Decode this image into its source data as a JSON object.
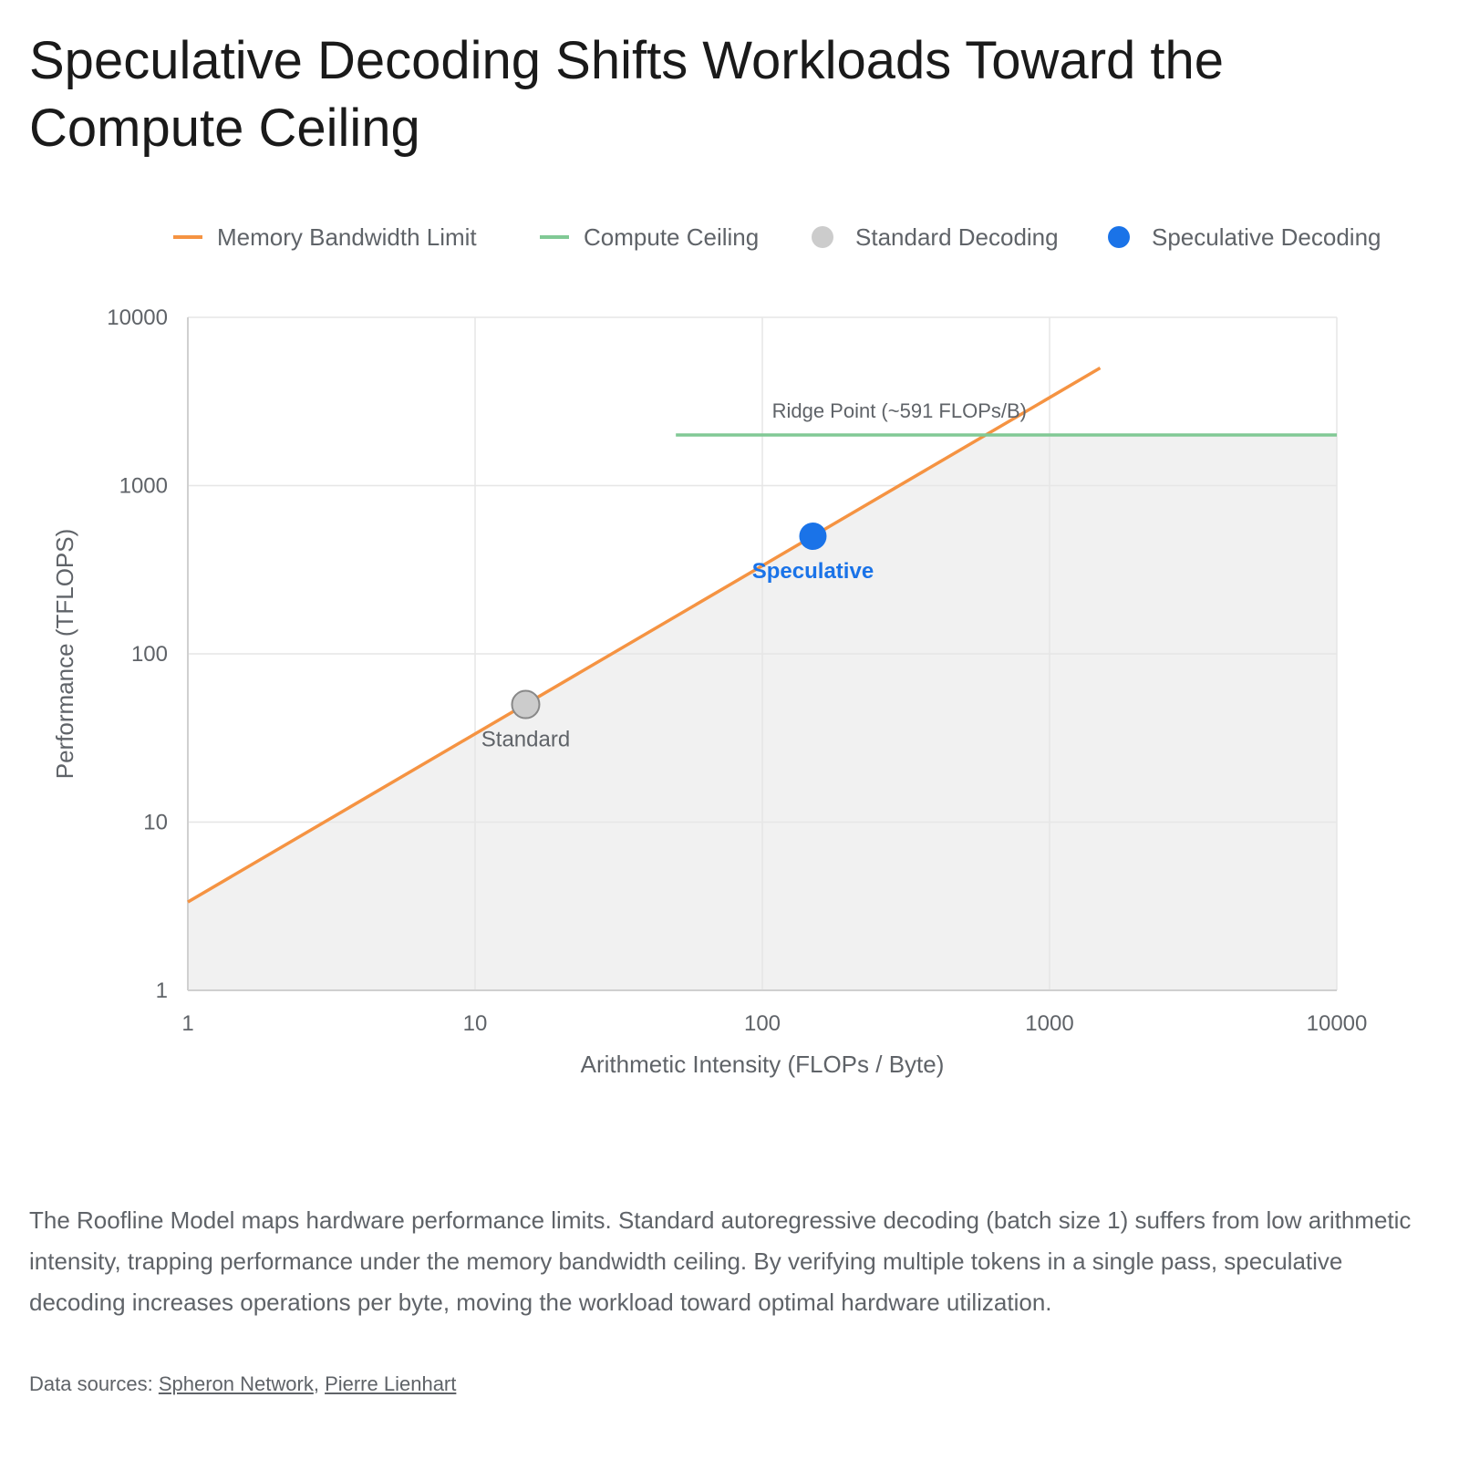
{
  "title": "Speculative Decoding Shifts Workloads Toward the Compute Ceiling",
  "description": "The Roofline Model maps hardware performance limits. Standard autoregressive decoding (batch size 1) suffers from low arithmetic intensity, trapping performance under the memory bandwidth ceiling. By verifying multiple tokens in a single pass, speculative decoding increases operations per byte, moving the workload toward optimal hardware utilization.",
  "sources": {
    "prefix": "Data sources: ",
    "separator": ", ",
    "links": [
      "Spheron Network",
      "Pierre Lienhart"
    ]
  },
  "chart_data": {
    "type": "line",
    "xlabel": "Arithmetic Intensity (FLOPs / Byte)",
    "ylabel": "Performance (TFLOPS)",
    "xscale": "log",
    "yscale": "log",
    "xlim": [
      1,
      10000
    ],
    "ylim": [
      1,
      10000
    ],
    "xticks": [
      1,
      10,
      100,
      1000,
      10000
    ],
    "yticks": [
      1,
      10,
      100,
      1000,
      10000
    ],
    "grid": true,
    "legend_position": "top",
    "legend": [
      {
        "label": "Memory Bandwidth Limit",
        "kind": "line",
        "color": "#f59342"
      },
      {
        "label": "Compute Ceiling",
        "kind": "line",
        "color": "#81c995"
      },
      {
        "label": "Standard Decoding",
        "kind": "point",
        "color": "#cccccc"
      },
      {
        "label": "Speculative Decoding",
        "kind": "point",
        "color": "#1a73e8"
      }
    ],
    "series": [
      {
        "name": "Memory Bandwidth Limit",
        "kind": "line",
        "color": "#f59342",
        "x": [
          1,
          1500
        ],
        "y": [
          3.35,
          5000
        ]
      },
      {
        "name": "Compute Ceiling",
        "kind": "line",
        "color": "#81c995",
        "x": [
          50,
          10000
        ],
        "y": [
          2000,
          2000
        ]
      },
      {
        "name": "Standard Decoding",
        "kind": "point",
        "color": "#cccccc",
        "stroke": "#888888",
        "x": [
          15
        ],
        "y": [
          50
        ],
        "label": "Standard",
        "label_color": "#5f6368"
      },
      {
        "name": "Speculative Decoding",
        "kind": "point",
        "color": "#1a73e8",
        "x": [
          150
        ],
        "y": [
          500
        ],
        "label": "Speculative",
        "label_color": "#1a73e8"
      }
    ],
    "shaded_region": {
      "color": "#f1f1f1",
      "x": [
        1,
        597,
        10000
      ],
      "y": [
        3.35,
        2000,
        2000
      ]
    },
    "annotations": [
      {
        "text": "Ridge Point (~591 FLOPs/B)",
        "x": 300,
        "y": 2800
      }
    ]
  }
}
